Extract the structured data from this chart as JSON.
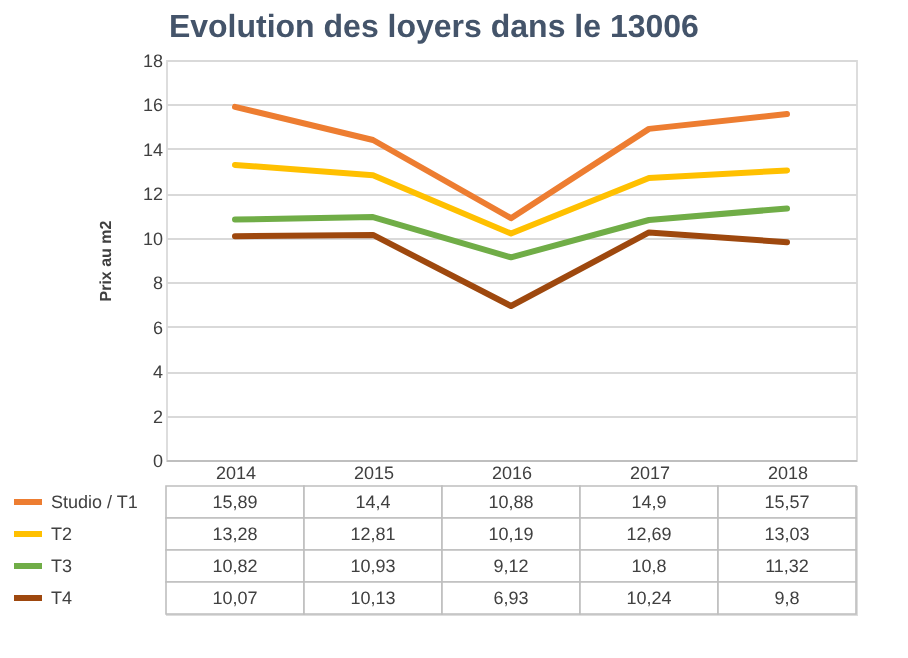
{
  "chart_data": {
    "type": "line",
    "title": "Evolution des loyers dans le 13006",
    "ylabel": "Prix au m2",
    "categories": [
      "2014",
      "2015",
      "2016",
      "2017",
      "2018"
    ],
    "series": [
      {
        "name": "Studio / T1",
        "color": "#ed7d31",
        "values": [
          15.89,
          14.4,
          10.88,
          14.9,
          15.57
        ],
        "value_labels": [
          "15,89",
          "14,4",
          "10,88",
          "14,9",
          "15,57"
        ]
      },
      {
        "name": "T2",
        "color": "#ffc000",
        "values": [
          13.28,
          12.81,
          10.19,
          12.69,
          13.03
        ],
        "value_labels": [
          "13,28",
          "12,81",
          "10,19",
          "12,69",
          "13,03"
        ]
      },
      {
        "name": "T3",
        "color": "#70ad47",
        "values": [
          10.82,
          10.93,
          9.12,
          10.8,
          11.32
        ],
        "value_labels": [
          "10,82",
          "10,93",
          "9,12",
          "10,8",
          "11,32"
        ]
      },
      {
        "name": "T4",
        "color": "#9e480e",
        "values": [
          10.07,
          10.13,
          6.93,
          10.24,
          9.8
        ],
        "value_labels": [
          "10,07",
          "10,13",
          "6,93",
          "10,24",
          "9,8"
        ]
      }
    ],
    "ylim": [
      0,
      18
    ],
    "yticks": [
      0,
      2,
      4,
      6,
      8,
      10,
      12,
      14,
      16,
      18
    ],
    "grid": "y",
    "legend": "bottom"
  }
}
